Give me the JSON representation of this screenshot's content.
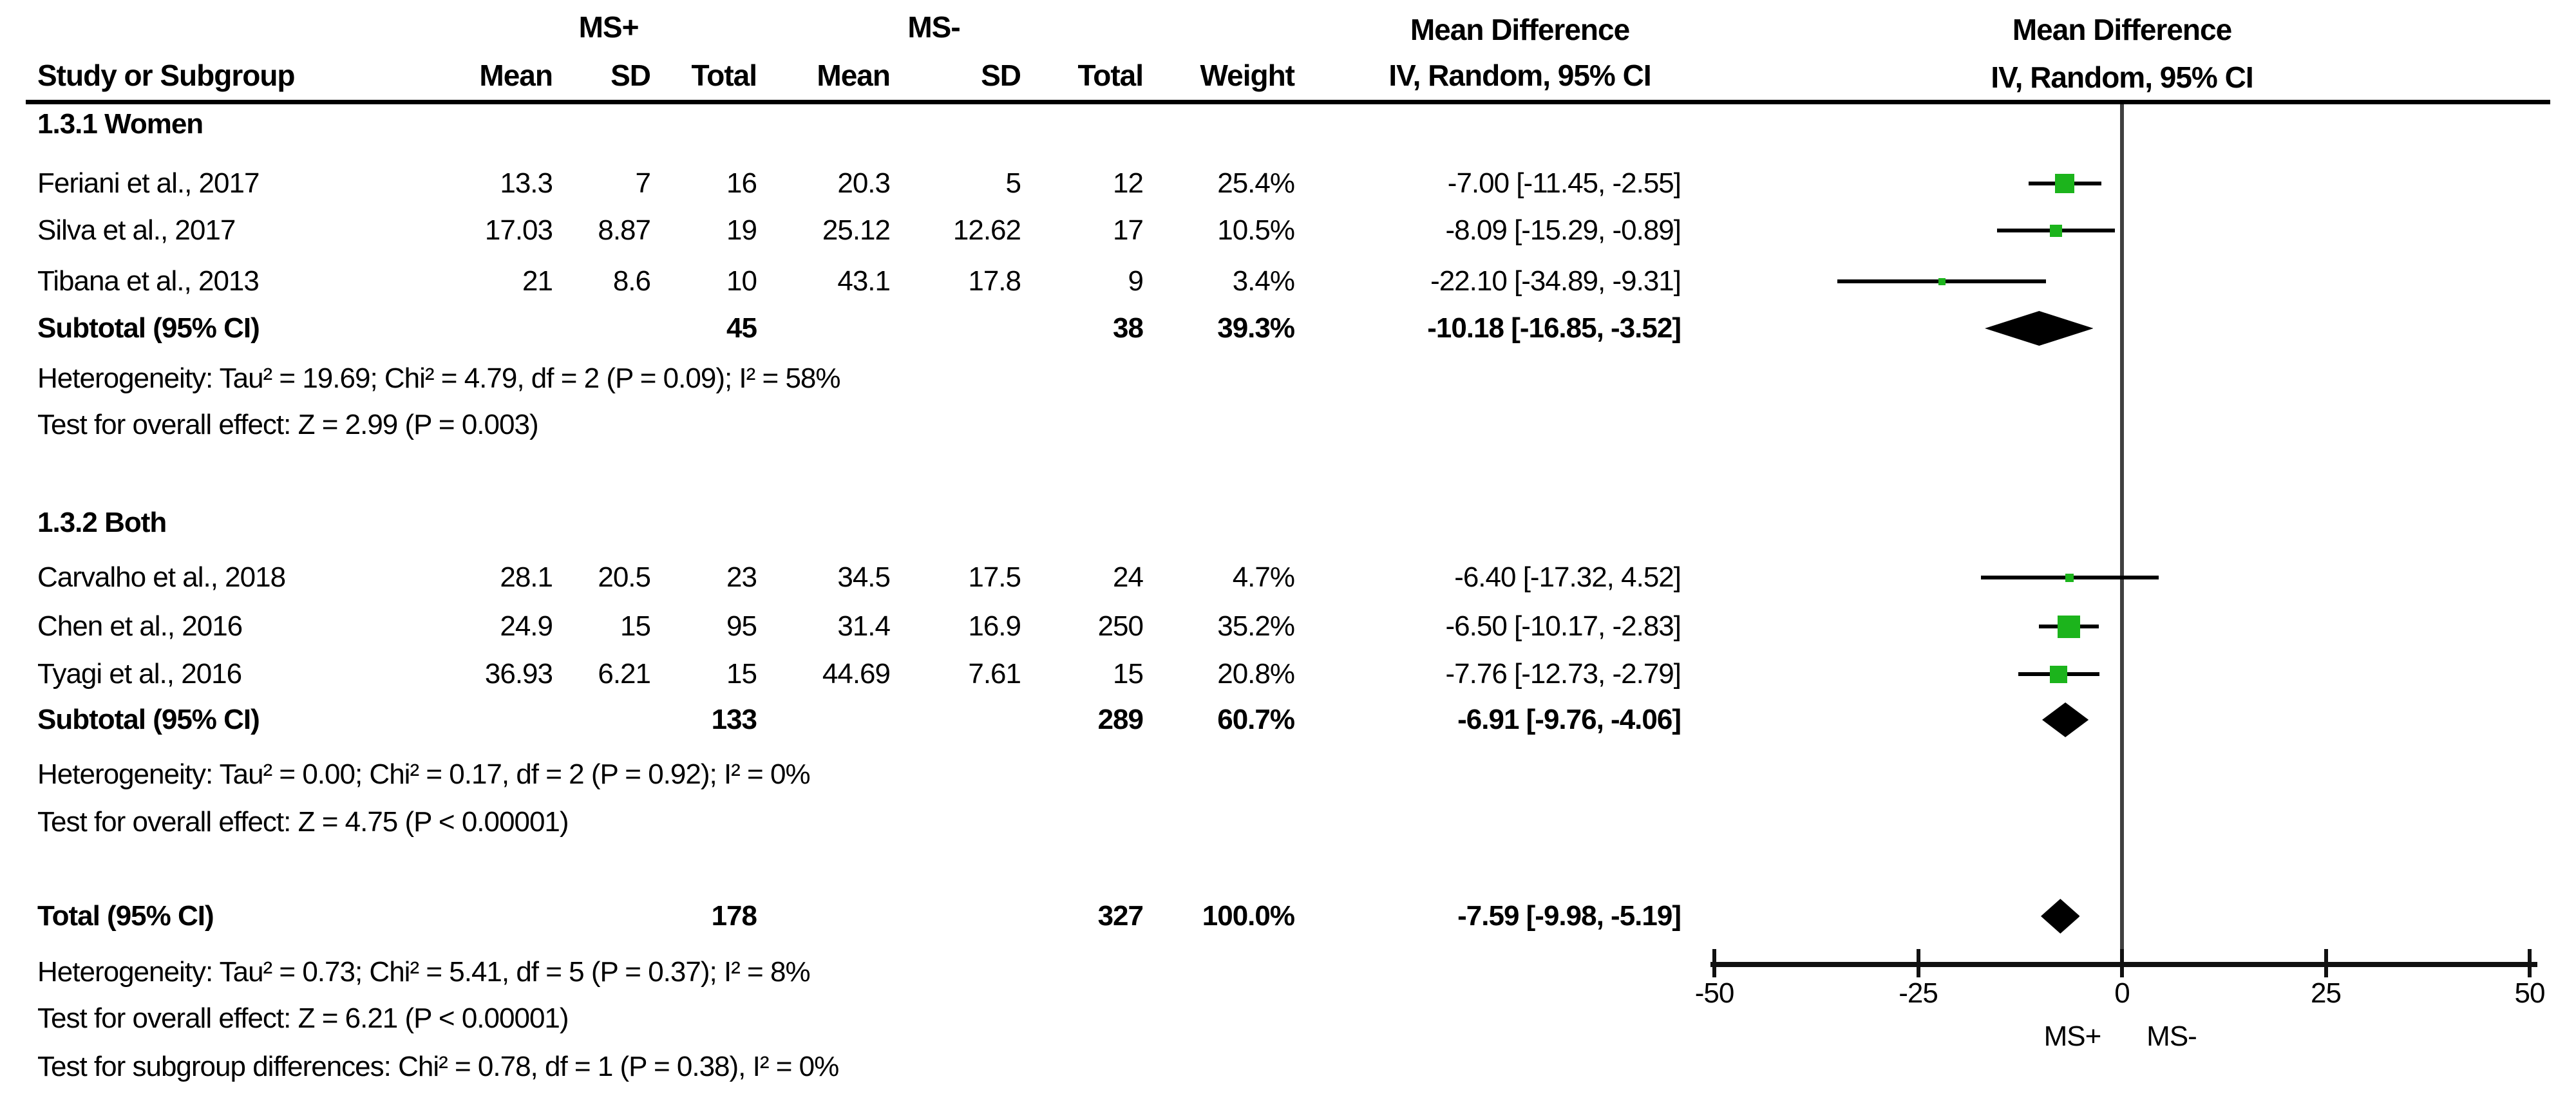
{
  "chart_data": {
    "type": "forest",
    "render_hint": "scatter",
    "effect_measure": "Mean Difference",
    "method_label": "IV, Random, 95% CI",
    "groups": [
      "MS+",
      "MS-"
    ],
    "columns": {
      "study": "Study or Subgroup",
      "mean": "Mean",
      "sd": "SD",
      "total": "Total",
      "weight": "Weight",
      "effect_title": "Mean Difference",
      "effect_sub": "IV, Random, 95% CI",
      "plot_title": "Mean Difference",
      "plot_sub": "IV, Random, 95% CI"
    },
    "xlim": [
      -50,
      50
    ],
    "x_ticks": [
      -50,
      -25,
      0,
      25,
      50
    ],
    "x_axis_labels": {
      "left": "MS+",
      "right": "MS-"
    },
    "subgroups": [
      {
        "label": "1.3.1 Women",
        "studies": [
          {
            "study": "Feriani et al., 2017",
            "mean1": "13.3",
            "sd1": "7",
            "total1": "16",
            "mean2": "20.3",
            "sd2": "5",
            "total2": "12",
            "weight": "25.4%",
            "weight_value": 25.4,
            "ci_label": "-7.00 [-11.45, -2.55]",
            "est": -7.0,
            "lo": -11.45,
            "hi": -2.55
          },
          {
            "study": "Silva et al., 2017",
            "mean1": "17.03",
            "sd1": "8.87",
            "total1": "19",
            "mean2": "25.12",
            "sd2": "12.62",
            "total2": "17",
            "weight": "10.5%",
            "weight_value": 10.5,
            "ci_label": "-8.09 [-15.29, -0.89]",
            "est": -8.09,
            "lo": -15.29,
            "hi": -0.89
          },
          {
            "study": "Tibana et al., 2013",
            "mean1": "21",
            "sd1": "8.6",
            "total1": "10",
            "mean2": "43.1",
            "sd2": "17.8",
            "total2": "9",
            "weight": "3.4%",
            "weight_value": 3.4,
            "ci_label": "-22.10 [-34.89, -9.31]",
            "est": -22.1,
            "lo": -34.89,
            "hi": -9.31
          }
        ],
        "subtotal": {
          "label": "Subtotal (95% CI)",
          "total1": "45",
          "total2": "38",
          "weight": "39.3%",
          "ci_label": "-10.18 [-16.85, -3.52]",
          "est": -10.18,
          "lo": -16.85,
          "hi": -3.52
        },
        "heterogeneity": "Heterogeneity: Tau² = 19.69; Chi² = 4.79, df = 2 (P = 0.09); I² = 58%",
        "overall_effect": "Test for overall effect: Z = 2.99 (P = 0.003)"
      },
      {
        "label": "1.3.2 Both",
        "studies": [
          {
            "study": "Carvalho et al., 2018",
            "mean1": "28.1",
            "sd1": "20.5",
            "total1": "23",
            "mean2": "34.5",
            "sd2": "17.5",
            "total2": "24",
            "weight": "4.7%",
            "weight_value": 4.7,
            "ci_label": "-6.40 [-17.32, 4.52]",
            "est": -6.4,
            "lo": -17.32,
            "hi": 4.52
          },
          {
            "study": "Chen et al., 2016",
            "mean1": "24.9",
            "sd1": "15",
            "total1": "95",
            "mean2": "31.4",
            "sd2": "16.9",
            "total2": "250",
            "weight": "35.2%",
            "weight_value": 35.2,
            "ci_label": "-6.50 [-10.17, -2.83]",
            "est": -6.5,
            "lo": -10.17,
            "hi": -2.83
          },
          {
            "study": "Tyagi et al., 2016",
            "mean1": "36.93",
            "sd1": "6.21",
            "total1": "15",
            "mean2": "44.69",
            "sd2": "7.61",
            "total2": "15",
            "weight": "20.8%",
            "weight_value": 20.8,
            "ci_label": "-7.76 [-12.73, -2.79]",
            "est": -7.76,
            "lo": -12.73,
            "hi": -2.79
          }
        ],
        "subtotal": {
          "label": "Subtotal (95% CI)",
          "total1": "133",
          "total2": "289",
          "weight": "60.7%",
          "ci_label": "-6.91 [-9.76, -4.06]",
          "est": -6.91,
          "lo": -9.76,
          "hi": -4.06
        },
        "heterogeneity": "Heterogeneity: Tau² = 0.00; Chi² = 0.17, df = 2 (P = 0.92); I² = 0%",
        "overall_effect": "Test for overall effect: Z = 4.75 (P < 0.00001)"
      }
    ],
    "total": {
      "label": "Total (95% CI)",
      "total1": "178",
      "total2": "327",
      "weight": "100.0%",
      "ci_label": "-7.59 [-9.98, -5.19]",
      "est": -7.59,
      "lo": -9.98,
      "hi": -5.19
    },
    "total_heterogeneity": "Heterogeneity: Tau² = 0.73; Chi² = 5.41, df = 5 (P = 0.37); I² = 8%",
    "total_overall_effect": "Test for overall effect: Z = 6.21 (P < 0.00001)",
    "subgroup_test": "Test for subgroup differences: Chi² = 0.78, df = 1 (P = 0.38), I² = 0%",
    "colors": {
      "square": "#1cb41c",
      "diamond": "#000000",
      "ci_line": "#000000",
      "zero_line": "#404040",
      "axis": "#111111"
    }
  }
}
